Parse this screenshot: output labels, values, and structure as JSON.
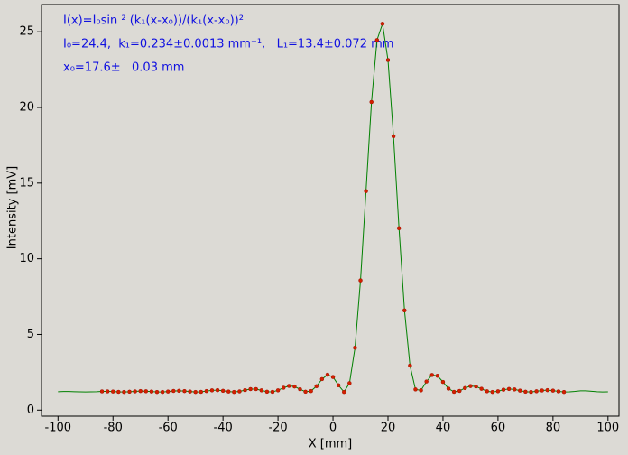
{
  "chart_data": {
    "type": "scatter",
    "annotations": [
      "I(x)=I₀sin ² (k₁(x-x₀))/(k₁(x-x₀))²",
      "I₀=24.4,  k₁=0.234±0.0013 mm⁻¹,   L₁=13.4±0.072 mm",
      "x₀=17.6±   0.03 mm"
    ],
    "xlabel": "X [mm]",
    "ylabel": "Intensity [mV]",
    "xlim": [
      -106,
      104
    ],
    "ylim": [
      -0.4,
      26.8
    ],
    "xticks": [
      -100,
      -80,
      -60,
      -40,
      -20,
      0,
      20,
      40,
      60,
      80,
      100
    ],
    "yticks": [
      0,
      5,
      10,
      15,
      20,
      25
    ],
    "series": [
      {
        "mode": "line",
        "color": "#008000",
        "x": [
          -100,
          -98,
          -96,
          -94,
          -92,
          -90,
          -88,
          -86,
          -84,
          -82,
          -80,
          -78,
          -76,
          -74,
          -72,
          -70,
          -68,
          -66,
          -64,
          -62,
          -60,
          -58,
          -56,
          -54,
          -52,
          -50,
          -48,
          -46,
          -44,
          -42,
          -40,
          -38,
          -36,
          -34,
          -32,
          -30,
          -28,
          -26,
          -24,
          -22,
          -20,
          -18,
          -16,
          -14,
          -12,
          -10,
          -8,
          -6,
          -4,
          -2,
          0,
          2,
          4,
          6,
          8,
          10,
          12,
          14,
          16,
          18,
          20,
          22,
          24,
          26,
          28,
          30,
          32,
          34,
          36,
          38,
          40,
          42,
          44,
          46,
          48,
          50,
          52,
          54,
          56,
          58,
          60,
          62,
          64,
          66,
          68,
          70,
          72,
          74,
          76,
          78,
          80,
          82,
          84,
          86,
          88,
          90,
          92,
          94,
          96,
          98,
          100
        ],
        "values": [
          1.22,
          1.23,
          1.23,
          1.22,
          1.21,
          1.2,
          1.21,
          1.22,
          1.24,
          1.24,
          1.23,
          1.21,
          1.2,
          1.22,
          1.24,
          1.26,
          1.25,
          1.23,
          1.2,
          1.2,
          1.23,
          1.27,
          1.28,
          1.26,
          1.23,
          1.2,
          1.21,
          1.26,
          1.31,
          1.32,
          1.28,
          1.23,
          1.2,
          1.24,
          1.32,
          1.39,
          1.39,
          1.31,
          1.22,
          1.21,
          1.31,
          1.48,
          1.6,
          1.56,
          1.38,
          1.22,
          1.26,
          1.58,
          2.05,
          2.34,
          2.19,
          1.64,
          1.2,
          1.78,
          4.12,
          8.57,
          14.47,
          20.36,
          24.45,
          25.53,
          23.13,
          18.1,
          12.02,
          6.59,
          2.94,
          1.37,
          1.31,
          1.89,
          2.32,
          2.27,
          1.86,
          1.42,
          1.21,
          1.27,
          1.46,
          1.59,
          1.56,
          1.41,
          1.25,
          1.2,
          1.25,
          1.35,
          1.4,
          1.37,
          1.29,
          1.22,
          1.2,
          1.25,
          1.3,
          1.32,
          1.29,
          1.24,
          1.2,
          1.21,
          1.24,
          1.28,
          1.28,
          1.25,
          1.22,
          1.2,
          1.21
        ]
      },
      {
        "mode": "markers",
        "color": "#d42000",
        "x": [
          -84,
          -82,
          -80,
          -78,
          -76,
          -74,
          -72,
          -70,
          -68,
          -66,
          -64,
          -62,
          -60,
          -58,
          -56,
          -54,
          -52,
          -50,
          -48,
          -46,
          -44,
          -42,
          -40,
          -38,
          -36,
          -34,
          -32,
          -30,
          -28,
          -26,
          -24,
          -22,
          -20,
          -18,
          -16,
          -14,
          -12,
          -10,
          -8,
          -6,
          -4,
          -2,
          0,
          2,
          4,
          6,
          8,
          10,
          12,
          14,
          16,
          18,
          20,
          22,
          24,
          26,
          28,
          30,
          32,
          34,
          36,
          38,
          40,
          42,
          44,
          46,
          48,
          50,
          52,
          54,
          56,
          58,
          60,
          62,
          64,
          66,
          68,
          70,
          72,
          74,
          76,
          78,
          80,
          82,
          84
        ],
        "values": [
          1.24,
          1.24,
          1.23,
          1.21,
          1.2,
          1.22,
          1.24,
          1.26,
          1.25,
          1.23,
          1.2,
          1.2,
          1.23,
          1.27,
          1.28,
          1.26,
          1.23,
          1.2,
          1.21,
          1.26,
          1.31,
          1.32,
          1.28,
          1.23,
          1.2,
          1.24,
          1.32,
          1.39,
          1.39,
          1.31,
          1.22,
          1.21,
          1.31,
          1.48,
          1.6,
          1.56,
          1.38,
          1.22,
          1.26,
          1.58,
          2.05,
          2.34,
          2.19,
          1.64,
          1.2,
          1.78,
          4.12,
          8.57,
          14.47,
          20.36,
          24.45,
          25.53,
          23.13,
          18.1,
          12.02,
          6.59,
          2.94,
          1.37,
          1.31,
          1.89,
          2.32,
          2.27,
          1.86,
          1.42,
          1.21,
          1.27,
          1.46,
          1.59,
          1.56,
          1.41,
          1.25,
          1.2,
          1.25,
          1.35,
          1.4,
          1.37,
          1.29,
          1.22,
          1.2,
          1.25,
          1.3,
          1.32,
          1.29,
          1.24,
          1.2
        ]
      }
    ]
  }
}
